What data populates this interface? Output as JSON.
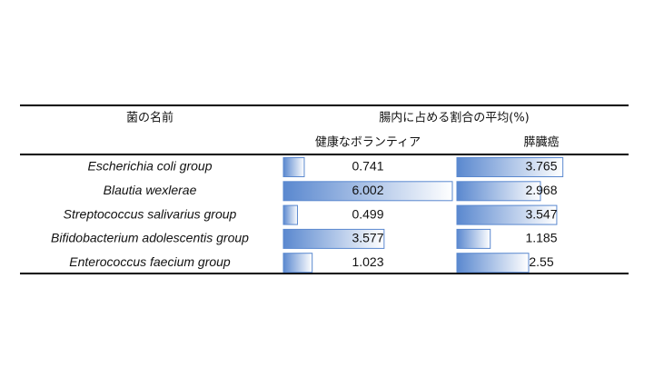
{
  "table": {
    "header": {
      "name": "菌の名前",
      "group": "腸内に占める割合の平均(%)"
    },
    "columns": [
      "健康なボランティア",
      "膵臓癌"
    ],
    "rows": [
      [
        "Escherichia coli group",
        0.741,
        3.765
      ],
      [
        "Blautia wexlerae",
        6.002,
        2.968
      ],
      [
        "Streptococcus salivarius group",
        0.499,
        3.547
      ],
      [
        "Bifidobacterium adolescentis group",
        3.577,
        1.185
      ],
      [
        "Enterococcus faecium group",
        1.023,
        2.55
      ]
    ]
  }
}
